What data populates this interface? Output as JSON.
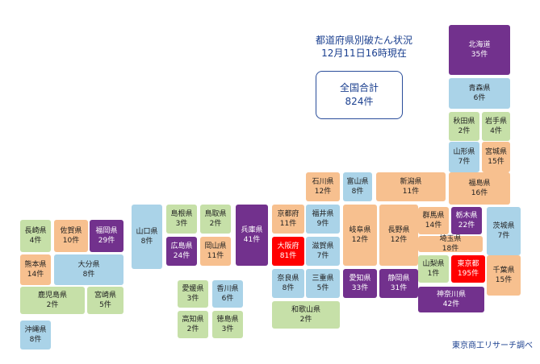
{
  "colors": {
    "light": "#aad3e8",
    "orange": "#f7c08f",
    "green": "#c6e0a8",
    "dark": "#72318d",
    "red": "#ff0000",
    "text_blue": "#1a3f8f"
  },
  "header": {
    "title": "都道府県別破たん状況",
    "date": "12月11日16時現在"
  },
  "total": {
    "label": "全国合計",
    "value": "824件"
  },
  "credit": "東京商工リサーチ調べ",
  "prefectures": [
    {
      "id": "hokkaido",
      "name": "北海道",
      "count": "35件",
      "cat": "dark"
    },
    {
      "id": "aomori",
      "name": "青森県",
      "count": "6件",
      "cat": "light"
    },
    {
      "id": "akita",
      "name": "秋田県",
      "count": "2件",
      "cat": "green"
    },
    {
      "id": "iwate",
      "name": "岩手県",
      "count": "4件",
      "cat": "green"
    },
    {
      "id": "yamagata",
      "name": "山形県",
      "count": "7件",
      "cat": "light"
    },
    {
      "id": "miyagi",
      "name": "宮城県",
      "count": "15件",
      "cat": "orange"
    },
    {
      "id": "ishikawa",
      "name": "石川県",
      "count": "12件",
      "cat": "orange"
    },
    {
      "id": "toyama",
      "name": "富山県",
      "count": "8件",
      "cat": "light"
    },
    {
      "id": "niigata",
      "name": "新潟県",
      "count": "11件",
      "cat": "orange"
    },
    {
      "id": "fukushima",
      "name": "福島県",
      "count": "16件",
      "cat": "orange"
    },
    {
      "id": "nagasaki",
      "name": "長崎県",
      "count": "4件",
      "cat": "green"
    },
    {
      "id": "saga",
      "name": "佐賀県",
      "count": "10件",
      "cat": "orange"
    },
    {
      "id": "fukuoka",
      "name": "福岡県",
      "count": "29件",
      "cat": "dark"
    },
    {
      "id": "yamaguchi",
      "name": "山口県",
      "count": "8件",
      "cat": "light"
    },
    {
      "id": "shimane",
      "name": "島根県",
      "count": "3件",
      "cat": "green"
    },
    {
      "id": "tottori",
      "name": "鳥取県",
      "count": "2件",
      "cat": "green"
    },
    {
      "id": "hyogo",
      "name": "兵庫県",
      "count": "41件",
      "cat": "dark"
    },
    {
      "id": "kyoto",
      "name": "京都府",
      "count": "11件",
      "cat": "orange"
    },
    {
      "id": "fukui",
      "name": "福井県",
      "count": "9件",
      "cat": "light"
    },
    {
      "id": "gifu",
      "name": "岐阜県",
      "count": "12件",
      "cat": "orange"
    },
    {
      "id": "nagano",
      "name": "長野県",
      "count": "12件",
      "cat": "orange"
    },
    {
      "id": "gunma",
      "name": "群馬県",
      "count": "14件",
      "cat": "orange"
    },
    {
      "id": "tochigi",
      "name": "栃木県",
      "count": "22件",
      "cat": "dark"
    },
    {
      "id": "ibaraki",
      "name": "茨城県",
      "count": "7件",
      "cat": "light"
    },
    {
      "id": "kumamoto",
      "name": "熊本県",
      "count": "14件",
      "cat": "orange"
    },
    {
      "id": "oita",
      "name": "大分県",
      "count": "8件",
      "cat": "light"
    },
    {
      "id": "hiroshima",
      "name": "広島県",
      "count": "24件",
      "cat": "dark"
    },
    {
      "id": "okayama",
      "name": "岡山県",
      "count": "11件",
      "cat": "orange"
    },
    {
      "id": "osaka",
      "name": "大阪府",
      "count": "81件",
      "cat": "red"
    },
    {
      "id": "shiga",
      "name": "滋賀県",
      "count": "7件",
      "cat": "light"
    },
    {
      "id": "saitama",
      "name": "埼玉県",
      "count": "18件",
      "cat": "orange"
    },
    {
      "id": "yamanashi",
      "name": "山梨県",
      "count": "1件",
      "cat": "green"
    },
    {
      "id": "tokyo",
      "name": "東京都",
      "count": "195件",
      "cat": "red"
    },
    {
      "id": "chiba",
      "name": "千葉県",
      "count": "15件",
      "cat": "orange"
    },
    {
      "id": "kagoshima",
      "name": "鹿児島県",
      "count": "2件",
      "cat": "green"
    },
    {
      "id": "miyazaki",
      "name": "宮崎県",
      "count": "5件",
      "cat": "green"
    },
    {
      "id": "nara",
      "name": "奈良県",
      "count": "8件",
      "cat": "light"
    },
    {
      "id": "mie",
      "name": "三重県",
      "count": "5件",
      "cat": "light"
    },
    {
      "id": "aichi",
      "name": "愛知県",
      "count": "33件",
      "cat": "dark"
    },
    {
      "id": "shizuoka",
      "name": "静岡県",
      "count": "31件",
      "cat": "dark"
    },
    {
      "id": "kanagawa",
      "name": "神奈川県",
      "count": "42件",
      "cat": "dark"
    },
    {
      "id": "ehime",
      "name": "愛媛県",
      "count": "3件",
      "cat": "green"
    },
    {
      "id": "kagawa",
      "name": "香川県",
      "count": "6件",
      "cat": "light"
    },
    {
      "id": "wakayama",
      "name": "和歌山県",
      "count": "2件",
      "cat": "green"
    },
    {
      "id": "kochi",
      "name": "高知県",
      "count": "2件",
      "cat": "green"
    },
    {
      "id": "tokushima",
      "name": "徳島県",
      "count": "3件",
      "cat": "green"
    },
    {
      "id": "okinawa",
      "name": "沖縄県",
      "count": "8件",
      "cat": "light"
    }
  ]
}
